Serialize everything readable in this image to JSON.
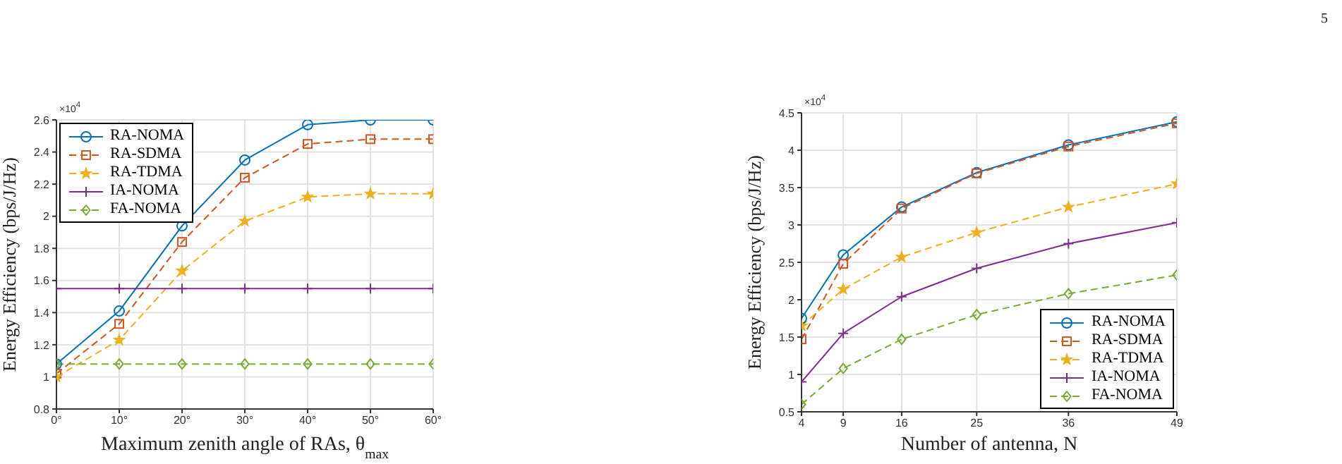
{
  "chart_data": [
    {
      "type": "line",
      "xlabel": "Maximum zenith angle of RAs, θ$_{max}$",
      "ylabel": "Energy Efficiency (bps/J/Hz)",
      "x": [
        0,
        10,
        20,
        30,
        40,
        50,
        60
      ],
      "xlim": [
        0,
        60
      ],
      "xticks": [
        {
          "value": 0,
          "label": "0°"
        },
        {
          "value": 10,
          "label": "10°"
        },
        {
          "value": 20,
          "label": "20°"
        },
        {
          "value": 30,
          "label": "30°"
        },
        {
          "value": 40,
          "label": "40°"
        },
        {
          "value": 50,
          "label": "50°"
        },
        {
          "value": 60,
          "label": "60°"
        }
      ],
      "ylim": [
        0.8,
        2.6
      ],
      "yticks": [
        0.8,
        1,
        1.2,
        1.4,
        1.6,
        1.8,
        2,
        2.2,
        2.4,
        2.6
      ],
      "grid": true,
      "legend": "top left",
      "annotations": [
        "×10$^{4}$"
      ],
      "series": [
        {
          "name": "RA-NOMA",
          "color": "#0072bd",
          "marker": "circle",
          "line_style": "solid",
          "values": [
            1.08,
            1.41,
            1.94,
            2.35,
            2.57,
            2.6,
            2.6
          ]
        },
        {
          "name": "RA-SDMA",
          "color": "#d95319",
          "marker": "square",
          "line_style": "dashed",
          "values": [
            1.02,
            1.33,
            1.84,
            2.24,
            2.45,
            2.48,
            2.48
          ]
        },
        {
          "name": "RA-TDMA",
          "color": "#edb120",
          "marker": "star",
          "line_style": "dashed",
          "values": [
            1.0,
            1.23,
            1.66,
            1.97,
            2.12,
            2.14,
            2.14
          ]
        },
        {
          "name": "IA-NOMA",
          "color": "#7e2f8e",
          "marker": "cross",
          "line_style": "solid",
          "values": [
            1.55,
            1.55,
            1.55,
            1.55,
            1.55,
            1.55,
            1.55
          ]
        },
        {
          "name": "FA-NOMA",
          "color": "#77ac30",
          "marker": "diamond",
          "line_style": "dashed",
          "values": [
            1.08,
            1.08,
            1.08,
            1.08,
            1.08,
            1.08,
            1.08
          ]
        }
      ]
    },
    {
      "type": "line",
      "xlabel": "Number of antenna, N",
      "ylabel": "Energy Efficiency (bps/J/Hz)",
      "x": [
        4,
        9,
        16,
        25,
        36,
        49
      ],
      "xlim": [
        4,
        49
      ],
      "xticks": [
        4,
        9,
        16,
        25,
        36,
        49
      ],
      "ylim": [
        0.5,
        4.5
      ],
      "yticks": [
        0.5,
        1,
        1.5,
        2,
        2.5,
        3,
        3.5,
        4,
        4.5
      ],
      "grid": true,
      "legend": "bottom right",
      "annotations": [
        "×10$^{4}$",
        "5"
      ],
      "series": [
        {
          "name": "RA-NOMA",
          "color": "#0072bd",
          "marker": "circle",
          "line_style": "solid",
          "values": [
            1.75,
            2.6,
            3.24,
            3.7,
            4.07,
            4.38
          ]
        },
        {
          "name": "RA-SDMA",
          "color": "#d95319",
          "marker": "square",
          "line_style": "dashed",
          "values": [
            1.47,
            2.48,
            3.22,
            3.69,
            4.05,
            4.36
          ]
        },
        {
          "name": "RA-TDMA",
          "color": "#edb120",
          "marker": "star",
          "line_style": "dashed",
          "values": [
            1.65,
            2.14,
            2.57,
            2.9,
            3.24,
            3.55
          ]
        },
        {
          "name": "IA-NOMA",
          "color": "#7e2f8e",
          "marker": "cross",
          "line_style": "solid",
          "values": [
            0.9,
            1.55,
            2.04,
            2.42,
            2.75,
            3.03
          ]
        },
        {
          "name": "FA-NOMA",
          "color": "#77ac30",
          "marker": "diamond",
          "line_style": "dashed",
          "values": [
            0.6,
            1.08,
            1.47,
            1.8,
            2.08,
            2.33
          ]
        }
      ]
    }
  ]
}
